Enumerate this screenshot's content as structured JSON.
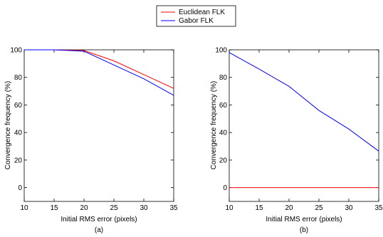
{
  "legend": {
    "entries": [
      {
        "label": "Euclidean FLK",
        "color": "#ff0000"
      },
      {
        "label": "Gabor FLK",
        "color": "#0000ff"
      }
    ],
    "placement": "top-center"
  },
  "chart_data": [
    {
      "type": "line",
      "panel_label": "(a)",
      "xlabel": "Initial RMS error (pixels)",
      "ylabel": "Convergence frequency (%)",
      "xlim": [
        10,
        35
      ],
      "ylim": [
        -10,
        100
      ],
      "xticks": [
        "10",
        "15",
        "20",
        "25",
        "30",
        "35"
      ],
      "yticks": [
        "0",
        "20",
        "40",
        "60",
        "80",
        "100"
      ],
      "grid": false,
      "series": [
        {
          "name": "Euclidean FLK",
          "color": "#ff0000",
          "x": [
            10,
            15,
            20,
            25,
            30,
            35
          ],
          "y": [
            100,
            100,
            99.5,
            92,
            82,
            72
          ]
        },
        {
          "name": "Gabor FLK",
          "color": "#0000ff",
          "x": [
            10,
            15,
            20,
            25,
            30,
            35
          ],
          "y": [
            100,
            100,
            99,
            89,
            79,
            67
          ]
        }
      ]
    },
    {
      "type": "line",
      "panel_label": "(b)",
      "xlabel": "Initial RMS error (pixels)",
      "ylabel": "Convergence frequency (%)",
      "xlim": [
        10,
        35
      ],
      "ylim": [
        -10,
        100
      ],
      "xticks": [
        "10",
        "15",
        "20",
        "25",
        "30",
        "35"
      ],
      "yticks": [
        "0",
        "20",
        "40",
        "60",
        "80",
        "100"
      ],
      "grid": false,
      "series": [
        {
          "name": "Euclidean FLK",
          "color": "#ff0000",
          "x": [
            10,
            15,
            20,
            25,
            30,
            35
          ],
          "y": [
            0,
            0,
            0,
            0,
            0,
            0
          ]
        },
        {
          "name": "Gabor FLK",
          "color": "#0000ff",
          "x": [
            10,
            15,
            20,
            25,
            30,
            35
          ],
          "y": [
            98,
            86,
            73.5,
            56,
            42.5,
            26.5
          ]
        }
      ]
    }
  ]
}
